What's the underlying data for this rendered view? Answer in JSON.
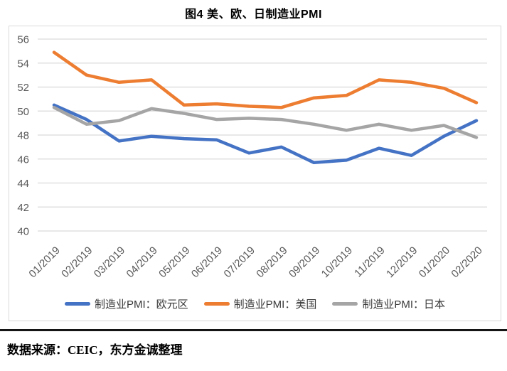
{
  "title": "图4 美、欧、日制造业PMI",
  "source_note": "数据来源：CEIC，东方金诚整理",
  "chart_data": {
    "type": "line",
    "title": "图4 美、欧、日制造业PMI",
    "categories": [
      "01/2019",
      "02/2019",
      "03/2019",
      "04/2019",
      "05/2019",
      "06/2019",
      "07/2019",
      "08/2019",
      "09/2019",
      "10/2019",
      "11/2019",
      "12/2019",
      "01/2020",
      "02/2020"
    ],
    "series": [
      {
        "name": "制造业PMI：欧元区",
        "color": "#4472C4",
        "values": [
          50.5,
          49.3,
          47.5,
          47.9,
          47.7,
          47.6,
          46.5,
          47.0,
          45.7,
          45.9,
          46.9,
          46.3,
          47.9,
          49.2
        ]
      },
      {
        "name": "制造业PMI：美国",
        "color": "#ED7D31",
        "values": [
          54.9,
          53.0,
          52.4,
          52.6,
          50.5,
          50.6,
          50.4,
          50.3,
          51.1,
          51.3,
          52.6,
          52.4,
          51.9,
          50.7
        ]
      },
      {
        "name": "制造业PMI：日本",
        "color": "#A5A5A5",
        "values": [
          50.3,
          48.9,
          49.2,
          50.2,
          49.8,
          49.3,
          49.4,
          49.3,
          48.9,
          48.4,
          48.9,
          48.4,
          48.8,
          47.8
        ]
      }
    ],
    "xlabel": "",
    "ylabel": "",
    "ylim": [
      40,
      56
    ],
    "ytick_step": 2,
    "grid": true,
    "legend_position": "bottom",
    "styles": {
      "grid_color": "#D9D9D9",
      "tick_color": "#595959",
      "box_border": "#D9D9D9",
      "line_width": 4.5
    }
  }
}
